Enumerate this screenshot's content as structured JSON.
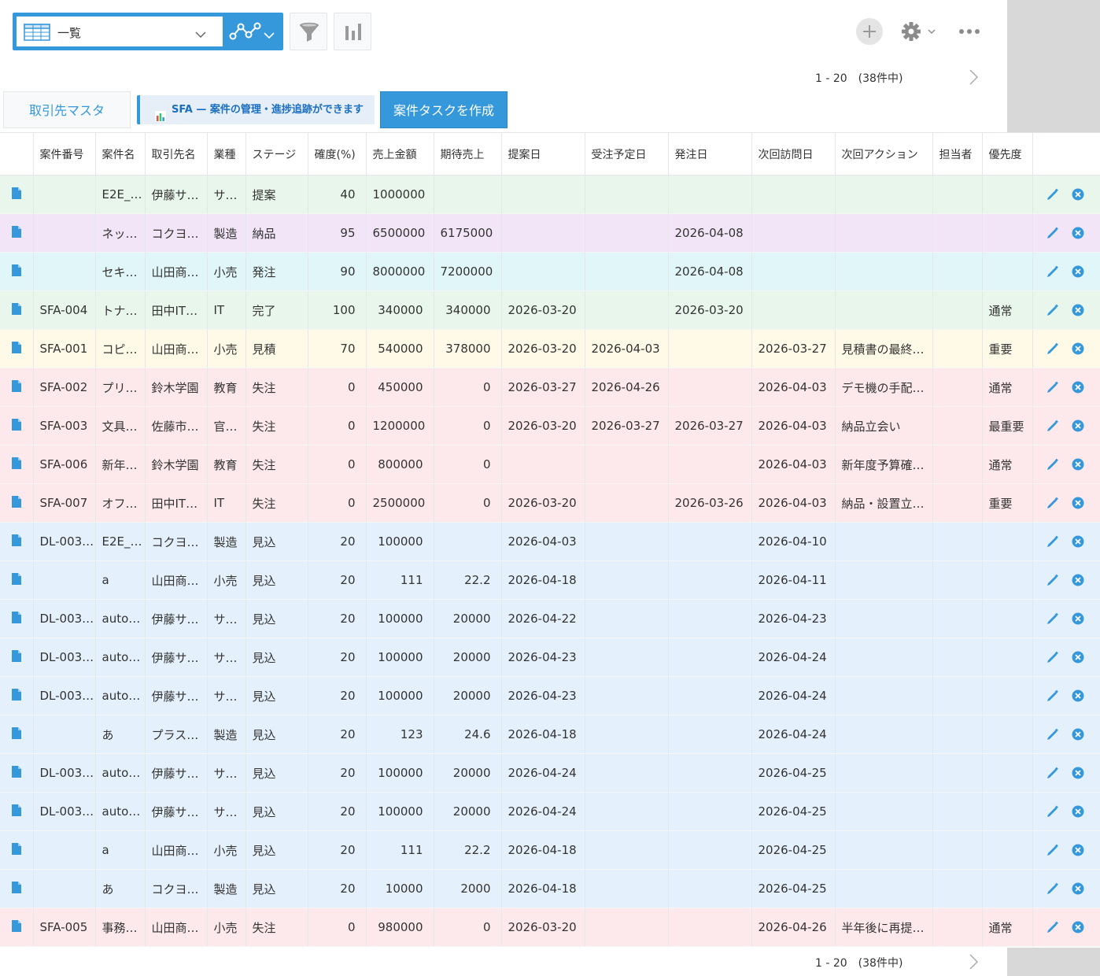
{
  "view": {
    "name": "一覧"
  },
  "pagination": {
    "text": "1 - 20　(38件中)"
  },
  "buttons": {
    "master": "取引先マスタ",
    "banner": "SFA — 案件の管理・進捗追跡ができます",
    "create": "案件タスクを作成"
  },
  "colors": {
    "accent": "#3498db",
    "row_green": "#e8f6ec",
    "row_purple": "#f2e5f7",
    "row_cyan": "#e1f6f8",
    "row_yellow": "#fefae7",
    "row_pink": "#fde9ec",
    "row_blue": "#e4f0fb"
  },
  "icons": [
    "table-icon",
    "graph-icon",
    "chevron-down-icon",
    "filter-icon",
    "bar-chart-icon",
    "plus-icon",
    "gear-icon",
    "more-icon",
    "chevron-right-icon",
    "document-icon",
    "pencil-icon",
    "close-circle-icon"
  ],
  "table": {
    "columns": [
      "案件番号",
      "案件名",
      "取引先名",
      "業種",
      "ステージ",
      "確度(%)",
      "売上金額",
      "期待売上",
      "提案日",
      "受注予定日",
      "発注日",
      "次回訪問日",
      "次回アクション",
      "担当者",
      "優先度"
    ],
    "rows": [
      {
        "color": "green",
        "cells": [
          "",
          "E2E_…",
          "伊藤サ…",
          "サ…",
          "提案",
          "40",
          "1000000",
          "",
          "",
          "",
          "",
          "",
          "",
          "",
          ""
        ]
      },
      {
        "color": "purple",
        "cells": [
          "",
          "ネッ…",
          "コクヨ…",
          "製造",
          "納品",
          "95",
          "6500000",
          "6175000",
          "",
          "",
          "2026-04-08",
          "",
          "",
          "",
          ""
        ]
      },
      {
        "color": "cyan",
        "cells": [
          "",
          "セキ…",
          "山田商…",
          "小売",
          "発注",
          "90",
          "8000000",
          "7200000",
          "",
          "",
          "2026-04-08",
          "",
          "",
          "",
          ""
        ]
      },
      {
        "color": "green",
        "cells": [
          "SFA-004",
          "トナ…",
          "田中IT…",
          "IT",
          "完了",
          "100",
          "340000",
          "340000",
          "2026-03-20",
          "",
          "2026-03-20",
          "",
          "",
          "",
          "通常"
        ]
      },
      {
        "color": "yellow",
        "cells": [
          "SFA-001",
          "コピ…",
          "山田商…",
          "小売",
          "見積",
          "70",
          "540000",
          "378000",
          "2026-03-20",
          "2026-04-03",
          "",
          "2026-03-27",
          "見積書の最終…",
          "",
          "重要"
        ]
      },
      {
        "color": "pink",
        "cells": [
          "SFA-002",
          "プリ…",
          "鈴木学園",
          "教育",
          "失注",
          "0",
          "450000",
          "0",
          "2026-03-27",
          "2026-04-26",
          "",
          "2026-04-03",
          "デモ機の手配…",
          "",
          "通常"
        ]
      },
      {
        "color": "pink",
        "cells": [
          "SFA-003",
          "文具…",
          "佐藤市…",
          "官…",
          "失注",
          "0",
          "1200000",
          "0",
          "2026-03-20",
          "2026-03-27",
          "2026-03-27",
          "2026-04-03",
          "納品立会い",
          "",
          "最重要"
        ]
      },
      {
        "color": "pink",
        "cells": [
          "SFA-006",
          "新年…",
          "鈴木学園",
          "教育",
          "失注",
          "0",
          "800000",
          "0",
          "",
          "",
          "",
          "2026-04-03",
          "新年度予算確…",
          "",
          "通常"
        ]
      },
      {
        "color": "pink",
        "cells": [
          "SFA-007",
          "オフ…",
          "田中IT…",
          "IT",
          "失注",
          "0",
          "2500000",
          "0",
          "2026-03-20",
          "",
          "2026-03-26",
          "2026-04-03",
          "納品・設置立…",
          "",
          "重要"
        ]
      },
      {
        "color": "blue",
        "cells": [
          "DL-003…",
          "E2E_…",
          "コクヨ…",
          "製造",
          "見込",
          "20",
          "100000",
          "",
          "2026-04-03",
          "",
          "",
          "2026-04-10",
          "",
          "",
          ""
        ]
      },
      {
        "color": "blue",
        "cells": [
          "",
          "a",
          "山田商…",
          "小売",
          "見込",
          "20",
          "111",
          "22.2",
          "2026-04-18",
          "",
          "",
          "2026-04-11",
          "",
          "",
          ""
        ]
      },
      {
        "color": "blue",
        "cells": [
          "DL-003…",
          "auto…",
          "伊藤サ…",
          "サ…",
          "見込",
          "20",
          "100000",
          "20000",
          "2026-04-22",
          "",
          "",
          "2026-04-23",
          "",
          "",
          ""
        ]
      },
      {
        "color": "blue",
        "cells": [
          "DL-003…",
          "auto…",
          "伊藤サ…",
          "サ…",
          "見込",
          "20",
          "100000",
          "20000",
          "2026-04-23",
          "",
          "",
          "2026-04-24",
          "",
          "",
          ""
        ]
      },
      {
        "color": "blue",
        "cells": [
          "DL-003…",
          "auto…",
          "伊藤サ…",
          "サ…",
          "見込",
          "20",
          "100000",
          "20000",
          "2026-04-23",
          "",
          "",
          "2026-04-24",
          "",
          "",
          ""
        ]
      },
      {
        "color": "blue",
        "cells": [
          "",
          "あ",
          "プラス…",
          "製造",
          "見込",
          "20",
          "123",
          "24.6",
          "2026-04-18",
          "",
          "",
          "2026-04-24",
          "",
          "",
          ""
        ]
      },
      {
        "color": "blue",
        "cells": [
          "DL-003…",
          "auto…",
          "伊藤サ…",
          "サ…",
          "見込",
          "20",
          "100000",
          "20000",
          "2026-04-24",
          "",
          "",
          "2026-04-25",
          "",
          "",
          ""
        ]
      },
      {
        "color": "blue",
        "cells": [
          "DL-003…",
          "auto…",
          "伊藤サ…",
          "サ…",
          "見込",
          "20",
          "100000",
          "20000",
          "2026-04-24",
          "",
          "",
          "2026-04-25",
          "",
          "",
          ""
        ]
      },
      {
        "color": "blue",
        "cells": [
          "",
          "a",
          "山田商…",
          "小売",
          "見込",
          "20",
          "111",
          "22.2",
          "2026-04-18",
          "",
          "",
          "2026-04-25",
          "",
          "",
          ""
        ]
      },
      {
        "color": "blue",
        "cells": [
          "",
          "あ",
          "コクヨ…",
          "製造",
          "見込",
          "20",
          "10000",
          "2000",
          "2026-04-18",
          "",
          "",
          "2026-04-25",
          "",
          "",
          ""
        ]
      },
      {
        "color": "pink",
        "cells": [
          "SFA-005",
          "事務…",
          "山田商…",
          "小売",
          "失注",
          "0",
          "980000",
          "0",
          "2026-03-20",
          "",
          "",
          "2026-04-26",
          "半年後に再提…",
          "",
          "通常"
        ]
      }
    ]
  }
}
